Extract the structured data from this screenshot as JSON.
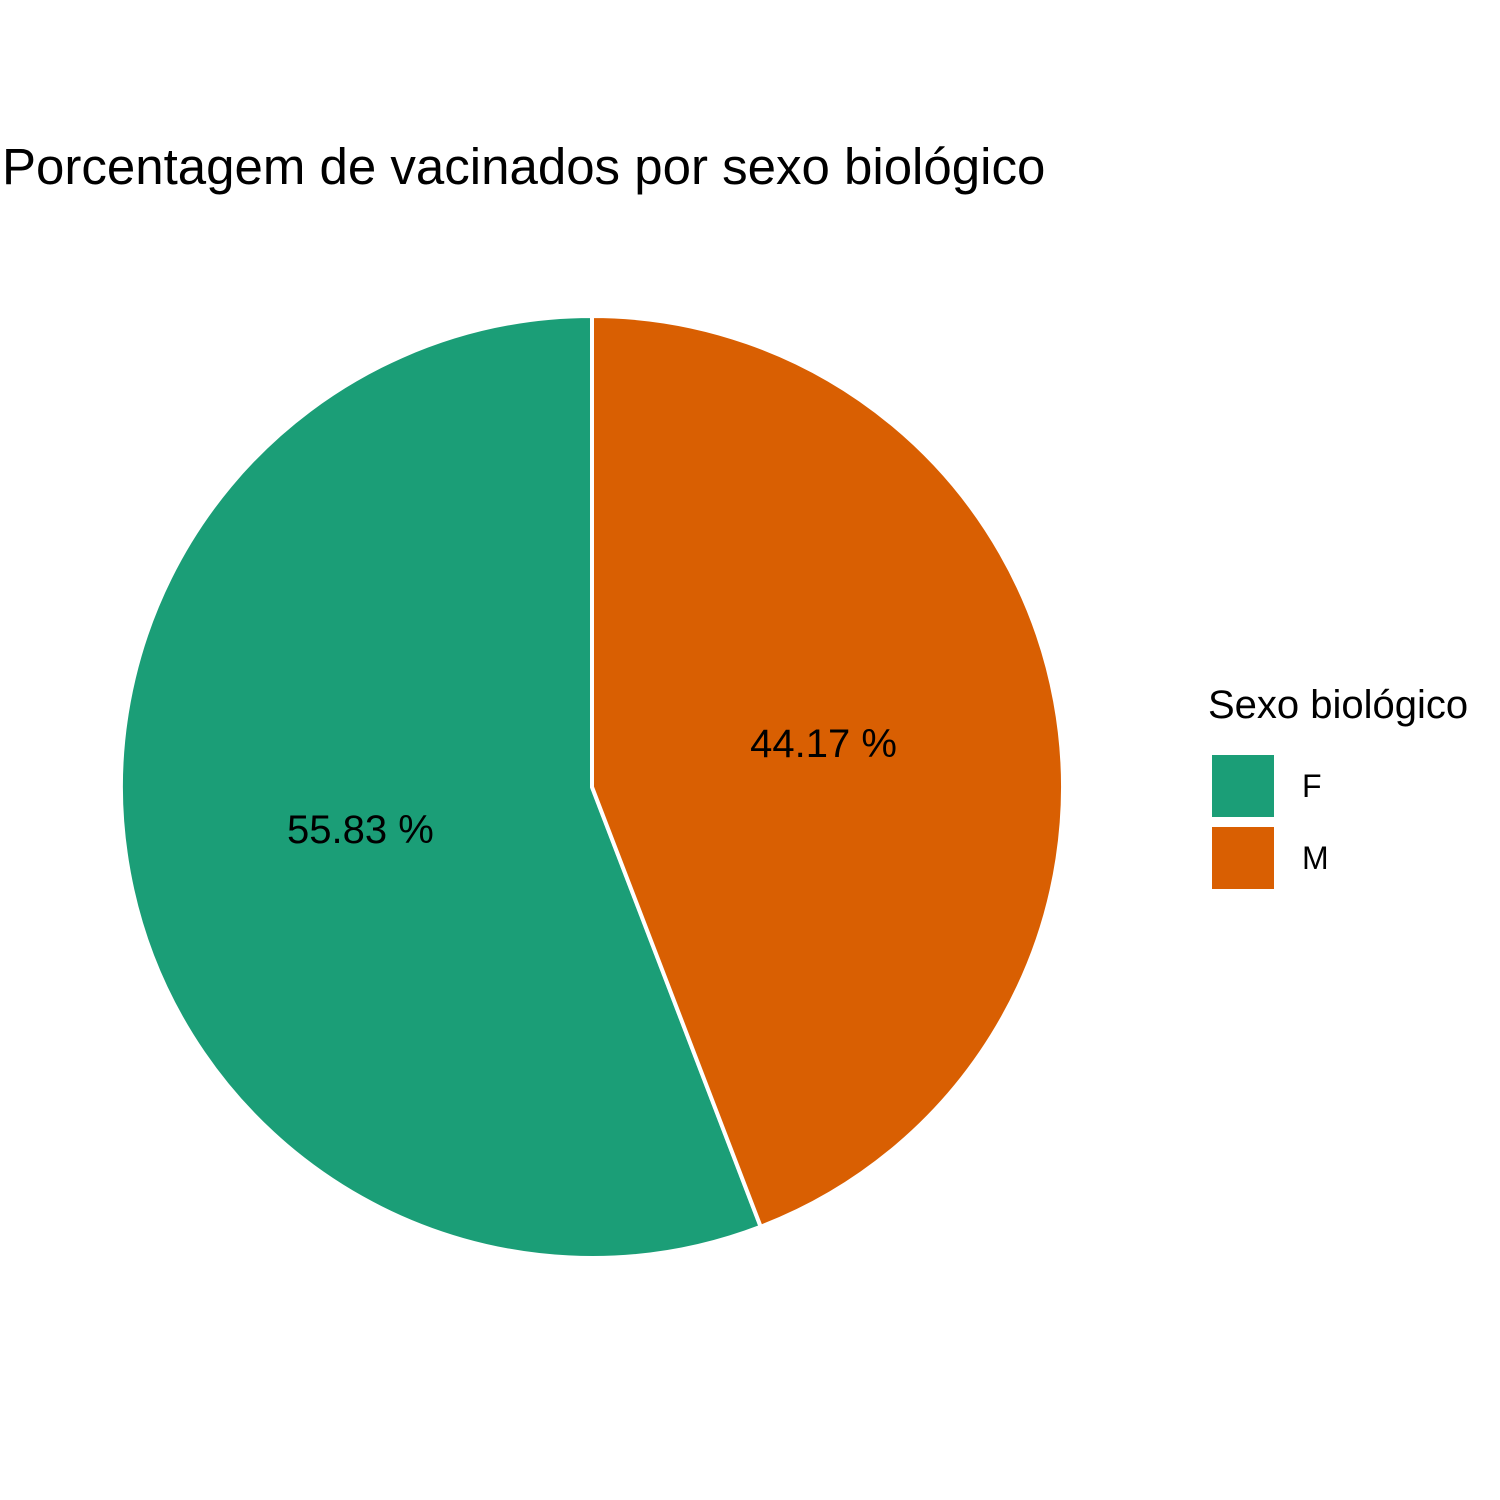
{
  "chart_data": {
    "type": "pie",
    "title": "Porcentagem de vacinados por sexo biológico",
    "legend_title": "Sexo biológico",
    "legend_position": "right",
    "slices": [
      {
        "category": "F",
        "value": 55.83,
        "label": "55.83 %",
        "color": "#1B9E77"
      },
      {
        "category": "M",
        "value": 44.17,
        "label": "44.17 %",
        "color": "#D95F02"
      }
    ]
  }
}
